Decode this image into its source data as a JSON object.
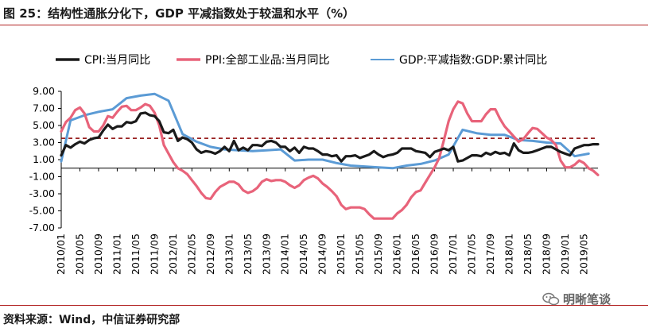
{
  "title": "图 25：结构性通胀分化下，GDP 平减指数处于较温和水平（%）",
  "source": "资料来源：Wind，中信证券研究部",
  "watermark": "明晰笔谈",
  "chart_data": {
    "type": "line",
    "ylim": [
      -7,
      9
    ],
    "yticks": [
      9.0,
      7.0,
      5.0,
      3.0,
      1.0,
      -1.0,
      -3.0,
      -5.0,
      -7.0
    ],
    "ytick_labels": [
      "9.00",
      "7.00",
      "5.00",
      "3.00",
      "1.00",
      "-1.00",
      "-3.00",
      "-5.00",
      "-7.00"
    ],
    "xtick_labels": [
      "2010/01",
      "2010/05",
      "2010/09",
      "2011/01",
      "2011/05",
      "2011/09",
      "2012/01",
      "2012/05",
      "2012/09",
      "2013/01",
      "2013/05",
      "2013/09",
      "2014/01",
      "2014/05",
      "2014/09",
      "2015/01",
      "2015/05",
      "2015/09",
      "2016/01",
      "2016/05",
      "2016/09",
      "2017/01",
      "2017/05",
      "2017/09",
      "2018/01",
      "2018/05",
      "2018/09",
      "2019/01",
      "2019/05"
    ],
    "reference_line": {
      "y": 3.5,
      "style": "dashed",
      "color": "#8b0000"
    },
    "series": [
      {
        "name": "CPI:当月同比",
        "color": "#1a1a1a",
        "points": [
          [
            0,
            1.5
          ],
          [
            1,
            2.7
          ],
          [
            2,
            2.4
          ],
          [
            3,
            2.8
          ],
          [
            4,
            3.1
          ],
          [
            5,
            2.9
          ],
          [
            6,
            3.3
          ],
          [
            7,
            3.5
          ],
          [
            8,
            3.6
          ],
          [
            9,
            4.4
          ],
          [
            10,
            5.1
          ],
          [
            11,
            4.6
          ],
          [
            12,
            4.9
          ],
          [
            13,
            4.9
          ],
          [
            14,
            5.4
          ],
          [
            15,
            5.3
          ],
          [
            16,
            5.5
          ],
          [
            17,
            6.4
          ],
          [
            18,
            6.5
          ],
          [
            19,
            6.2
          ],
          [
            20,
            6.1
          ],
          [
            21,
            5.5
          ],
          [
            22,
            4.2
          ],
          [
            23,
            4.1
          ],
          [
            24,
            4.5
          ],
          [
            25,
            3.2
          ],
          [
            26,
            3.6
          ],
          [
            27,
            3.4
          ],
          [
            28,
            3.0
          ],
          [
            29,
            2.2
          ],
          [
            30,
            1.8
          ],
          [
            31,
            2.0
          ],
          [
            32,
            1.9
          ],
          [
            33,
            1.7
          ],
          [
            34,
            2.0
          ],
          [
            35,
            2.5
          ],
          [
            36,
            2.0
          ],
          [
            37,
            3.2
          ],
          [
            38,
            2.1
          ],
          [
            39,
            2.4
          ],
          [
            40,
            2.1
          ],
          [
            41,
            2.7
          ],
          [
            42,
            2.7
          ],
          [
            43,
            2.6
          ],
          [
            44,
            3.1
          ],
          [
            45,
            3.2
          ],
          [
            46,
            3.0
          ],
          [
            47,
            2.5
          ],
          [
            48,
            2.5
          ],
          [
            49,
            2.0
          ],
          [
            50,
            2.4
          ],
          [
            51,
            1.8
          ],
          [
            52,
            2.5
          ],
          [
            53,
            2.3
          ],
          [
            54,
            2.3
          ],
          [
            55,
            2.0
          ],
          [
            56,
            1.6
          ],
          [
            57,
            1.6
          ],
          [
            58,
            1.4
          ],
          [
            59,
            1.5
          ],
          [
            60,
            0.8
          ],
          [
            61,
            1.4
          ],
          [
            62,
            1.4
          ],
          [
            63,
            1.5
          ],
          [
            64,
            1.2
          ],
          [
            65,
            1.4
          ],
          [
            66,
            1.6
          ],
          [
            67,
            2.0
          ],
          [
            68,
            1.6
          ],
          [
            69,
            1.3
          ],
          [
            70,
            1.5
          ],
          [
            71,
            1.6
          ],
          [
            72,
            1.8
          ],
          [
            73,
            2.3
          ],
          [
            74,
            2.3
          ],
          [
            75,
            2.3
          ],
          [
            76,
            2.0
          ],
          [
            77,
            1.9
          ],
          [
            78,
            1.8
          ],
          [
            79,
            1.3
          ],
          [
            80,
            1.9
          ],
          [
            81,
            2.1
          ],
          [
            82,
            2.3
          ],
          [
            83,
            2.1
          ],
          [
            84,
            2.5
          ],
          [
            85,
            0.8
          ],
          [
            86,
            0.9
          ],
          [
            87,
            1.2
          ],
          [
            88,
            1.5
          ],
          [
            89,
            1.5
          ],
          [
            90,
            1.4
          ],
          [
            91,
            1.8
          ],
          [
            92,
            1.6
          ],
          [
            93,
            1.9
          ],
          [
            94,
            1.7
          ],
          [
            95,
            1.8
          ],
          [
            96,
            1.5
          ],
          [
            97,
            2.9
          ],
          [
            98,
            2.1
          ],
          [
            99,
            1.8
          ],
          [
            100,
            1.8
          ],
          [
            101,
            1.9
          ],
          [
            102,
            2.1
          ],
          [
            103,
            2.3
          ],
          [
            104,
            2.5
          ],
          [
            105,
            2.5
          ],
          [
            106,
            2.2
          ],
          [
            107,
            1.9
          ],
          [
            108,
            1.7
          ],
          [
            109,
            1.5
          ],
          [
            110,
            2.3
          ],
          [
            111,
            2.5
          ],
          [
            112,
            2.7
          ],
          [
            113,
            2.7
          ],
          [
            114,
            2.8
          ],
          [
            115,
            2.8
          ]
        ]
      },
      {
        "name": "PPI:全部工业品:当月同比",
        "color": "#e8637a",
        "points": [
          [
            0,
            4.3
          ],
          [
            1,
            5.4
          ],
          [
            2,
            5.9
          ],
          [
            3,
            6.8
          ],
          [
            4,
            7.1
          ],
          [
            5,
            6.4
          ],
          [
            6,
            4.8
          ],
          [
            7,
            4.3
          ],
          [
            8,
            4.3
          ],
          [
            9,
            5.0
          ],
          [
            10,
            6.1
          ],
          [
            11,
            5.9
          ],
          [
            12,
            6.6
          ],
          [
            13,
            7.2
          ],
          [
            14,
            7.3
          ],
          [
            15,
            6.8
          ],
          [
            16,
            6.8
          ],
          [
            17,
            7.1
          ],
          [
            18,
            7.5
          ],
          [
            19,
            7.3
          ],
          [
            20,
            6.5
          ],
          [
            21,
            5.0
          ],
          [
            22,
            2.7
          ],
          [
            23,
            1.7
          ],
          [
            24,
            0.7
          ],
          [
            25,
            0.0
          ],
          [
            26,
            -0.3
          ],
          [
            27,
            -0.7
          ],
          [
            28,
            -1.4
          ],
          [
            29,
            -2.1
          ],
          [
            30,
            -2.9
          ],
          [
            31,
            -3.5
          ],
          [
            32,
            -3.6
          ],
          [
            33,
            -2.8
          ],
          [
            34,
            -2.2
          ],
          [
            35,
            -1.9
          ],
          [
            36,
            -1.6
          ],
          [
            37,
            -1.6
          ],
          [
            38,
            -1.9
          ],
          [
            39,
            -2.6
          ],
          [
            40,
            -2.9
          ],
          [
            41,
            -2.7
          ],
          [
            42,
            -2.3
          ],
          [
            43,
            -1.6
          ],
          [
            44,
            -1.3
          ],
          [
            45,
            -1.5
          ],
          [
            46,
            -1.4
          ],
          [
            47,
            -1.4
          ],
          [
            48,
            -1.6
          ],
          [
            49,
            -2.0
          ],
          [
            50,
            -2.3
          ],
          [
            51,
            -2.0
          ],
          [
            52,
            -1.4
          ],
          [
            53,
            -1.1
          ],
          [
            54,
            -0.9
          ],
          [
            55,
            -1.2
          ],
          [
            56,
            -1.8
          ],
          [
            57,
            -2.2
          ],
          [
            58,
            -2.7
          ],
          [
            59,
            -3.3
          ],
          [
            60,
            -4.3
          ],
          [
            61,
            -4.8
          ],
          [
            62,
            -4.6
          ],
          [
            63,
            -4.6
          ],
          [
            64,
            -4.6
          ],
          [
            65,
            -4.8
          ],
          [
            66,
            -5.4
          ],
          [
            67,
            -5.9
          ],
          [
            68,
            -5.9
          ],
          [
            69,
            -5.9
          ],
          [
            70,
            -5.9
          ],
          [
            71,
            -5.9
          ],
          [
            72,
            -5.3
          ],
          [
            73,
            -4.9
          ],
          [
            74,
            -4.3
          ],
          [
            75,
            -3.4
          ],
          [
            76,
            -2.8
          ],
          [
            77,
            -2.6
          ],
          [
            78,
            -1.7
          ],
          [
            79,
            -0.8
          ],
          [
            80,
            0.1
          ],
          [
            81,
            1.2
          ],
          [
            82,
            3.3
          ],
          [
            83,
            5.5
          ],
          [
            84,
            6.9
          ],
          [
            85,
            7.8
          ],
          [
            86,
            7.6
          ],
          [
            87,
            6.4
          ],
          [
            88,
            5.5
          ],
          [
            89,
            5.5
          ],
          [
            90,
            5.5
          ],
          [
            91,
            6.3
          ],
          [
            92,
            6.9
          ],
          [
            93,
            6.9
          ],
          [
            94,
            5.8
          ],
          [
            95,
            4.9
          ],
          [
            96,
            4.3
          ],
          [
            97,
            3.7
          ],
          [
            98,
            3.1
          ],
          [
            99,
            3.4
          ],
          [
            100,
            4.1
          ],
          [
            101,
            4.7
          ],
          [
            102,
            4.6
          ],
          [
            103,
            4.1
          ],
          [
            104,
            3.6
          ],
          [
            105,
            3.3
          ],
          [
            106,
            2.7
          ],
          [
            107,
            0.9
          ],
          [
            108,
            0.1
          ],
          [
            109,
            0.1
          ],
          [
            110,
            0.4
          ],
          [
            111,
            0.9
          ],
          [
            112,
            0.6
          ],
          [
            113,
            0.0
          ],
          [
            114,
            -0.3
          ],
          [
            115,
            -0.8
          ]
        ]
      },
      {
        "name": "GDP:平减指数:GDP:累计同比",
        "color": "#5b9bd5",
        "points": [
          [
            0,
            0.8
          ],
          [
            2,
            5.6
          ],
          [
            5,
            6.2
          ],
          [
            8,
            6.6
          ],
          [
            11,
            6.9
          ],
          [
            14,
            8.2
          ],
          [
            17,
            8.5
          ],
          [
            20,
            8.7
          ],
          [
            23,
            7.9
          ],
          [
            26,
            4.0
          ],
          [
            29,
            3.1
          ],
          [
            32,
            2.5
          ],
          [
            35,
            2.2
          ],
          [
            38,
            2.1
          ],
          [
            41,
            2.0
          ],
          [
            44,
            2.1
          ],
          [
            47,
            2.2
          ],
          [
            50,
            0.9
          ],
          [
            53,
            1.0
          ],
          [
            56,
            1.0
          ],
          [
            59,
            0.6
          ],
          [
            62,
            0.3
          ],
          [
            65,
            0.2
          ],
          [
            68,
            0.1
          ],
          [
            71,
            0.0
          ],
          [
            74,
            0.3
          ],
          [
            77,
            0.5
          ],
          [
            80,
            0.9
          ],
          [
            83,
            1.6
          ],
          [
            86,
            4.5
          ],
          [
            89,
            4.1
          ],
          [
            92,
            3.9
          ],
          [
            95,
            3.9
          ],
          [
            98,
            3.3
          ],
          [
            101,
            3.2
          ],
          [
            104,
            3.0
          ],
          [
            107,
            2.9
          ],
          [
            110,
            1.4
          ],
          [
            113,
            1.7
          ]
        ]
      }
    ]
  }
}
